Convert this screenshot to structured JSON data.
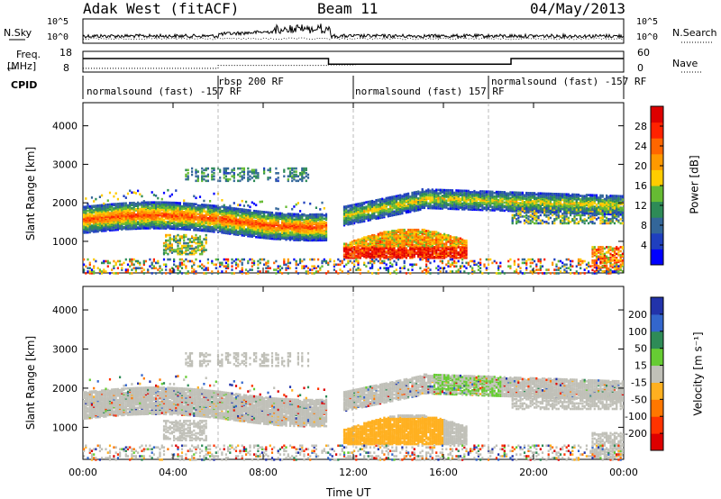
{
  "header": {
    "station": "Adak West (fitACF)",
    "beam": "Beam 11",
    "date": "04/May/2013"
  },
  "left_labels": {
    "nsky": "N.Sky",
    "freq": "Freq.",
    "freq_unit": "[MHz]",
    "cpid": "CPID"
  },
  "right_labels": {
    "nsearch": "N.Search",
    "nave": "Nave"
  },
  "noise_panel": {
    "y_ticks_left": [
      "10^5",
      "10^0"
    ],
    "y_ticks_right": [
      "10^5",
      "10^0"
    ]
  },
  "freq_panel": {
    "y_ticks_left": [
      "18",
      "8"
    ],
    "y_ticks_right": [
      "60",
      "0"
    ],
    "freq_line": [
      [
        0,
        14.5
      ],
      [
        10.9,
        14.5
      ],
      [
        10.9,
        11.8
      ],
      [
        19,
        11.8
      ],
      [
        19,
        14.5
      ],
      [
        24,
        14.5
      ]
    ],
    "nave_line": [
      [
        0,
        9.8
      ],
      [
        6,
        9.8
      ],
      [
        6,
        11.2
      ],
      [
        10.9,
        11.2
      ],
      [
        10.9,
        11.5
      ],
      [
        12.1,
        11.5
      ]
    ]
  },
  "cpid_panel": {
    "segments": [
      {
        "label": "normalsound (fast) -157 RF",
        "start": 0.0
      },
      {
        "label": "rbsp 200 RF",
        "start": 6.0
      },
      {
        "label": "normalsound (fast) 157 RF",
        "start": 12.0
      },
      {
        "label": "normalsound (fast) -157 RF",
        "start": 18.0
      }
    ]
  },
  "chart_data": [
    {
      "type": "heatmap",
      "name": "power",
      "xlabel": "Time UT",
      "ylabel": "Slant Range [km]",
      "xlim": [
        0,
        24
      ],
      "ylim": [
        180,
        4600
      ],
      "x_ticks": [
        "00:00",
        "04:00",
        "08:00",
        "12:00",
        "16:00",
        "20:00",
        "00:00"
      ],
      "y_ticks": [
        1000,
        2000,
        3000,
        4000
      ],
      "colorbar": {
        "label": "Power [dB]",
        "ticks": [
          4,
          8,
          12,
          16,
          20,
          24,
          28
        ],
        "range": [
          0,
          32
        ],
        "colors": [
          "#0000ff",
          "#1f3fbf",
          "#336699",
          "#2e8b57",
          "#66bb33",
          "#ffcc00",
          "#ff9900",
          "#ff6600",
          "#ff2200",
          "#dd0000"
        ]
      },
      "features": [
        {
          "t0": 0,
          "t1": 11,
          "r0": 1400,
          "r1": 2200,
          "value": 18,
          "profile": "band_a"
        },
        {
          "t0": 12,
          "t1": 24,
          "r0": 1600,
          "r1": 2300,
          "value": 12,
          "profile": "band_b"
        },
        {
          "t0": 12,
          "t1": 17,
          "r0": 650,
          "r1": 1400,
          "value": 22,
          "profile": "arc"
        },
        {
          "t0": 4.5,
          "t1": 10,
          "r0": 2550,
          "r1": 3000,
          "value": 9,
          "profile": "upper"
        }
      ]
    },
    {
      "type": "heatmap",
      "name": "velocity",
      "xlabel": "Time UT",
      "ylabel": "Slant Range [km]",
      "xlim": [
        0,
        24
      ],
      "ylim": [
        180,
        4600
      ],
      "x_ticks": [
        "00:00",
        "04:00",
        "08:00",
        "12:00",
        "16:00",
        "20:00",
        "00:00"
      ],
      "y_ticks": [
        1000,
        2000,
        3000,
        4000
      ],
      "colorbar": {
        "label": "Velocity [m s⁻¹]",
        "ticks": [
          200,
          100,
          50,
          15,
          -15,
          -50,
          -100,
          -200
        ],
        "colors": [
          "#2233aa",
          "#3366cc",
          "#2e8b57",
          "#66cc33",
          "#c0c0b8",
          "#ffb020",
          "#ff7700",
          "#ff3300",
          "#dd0000"
        ]
      }
    }
  ]
}
